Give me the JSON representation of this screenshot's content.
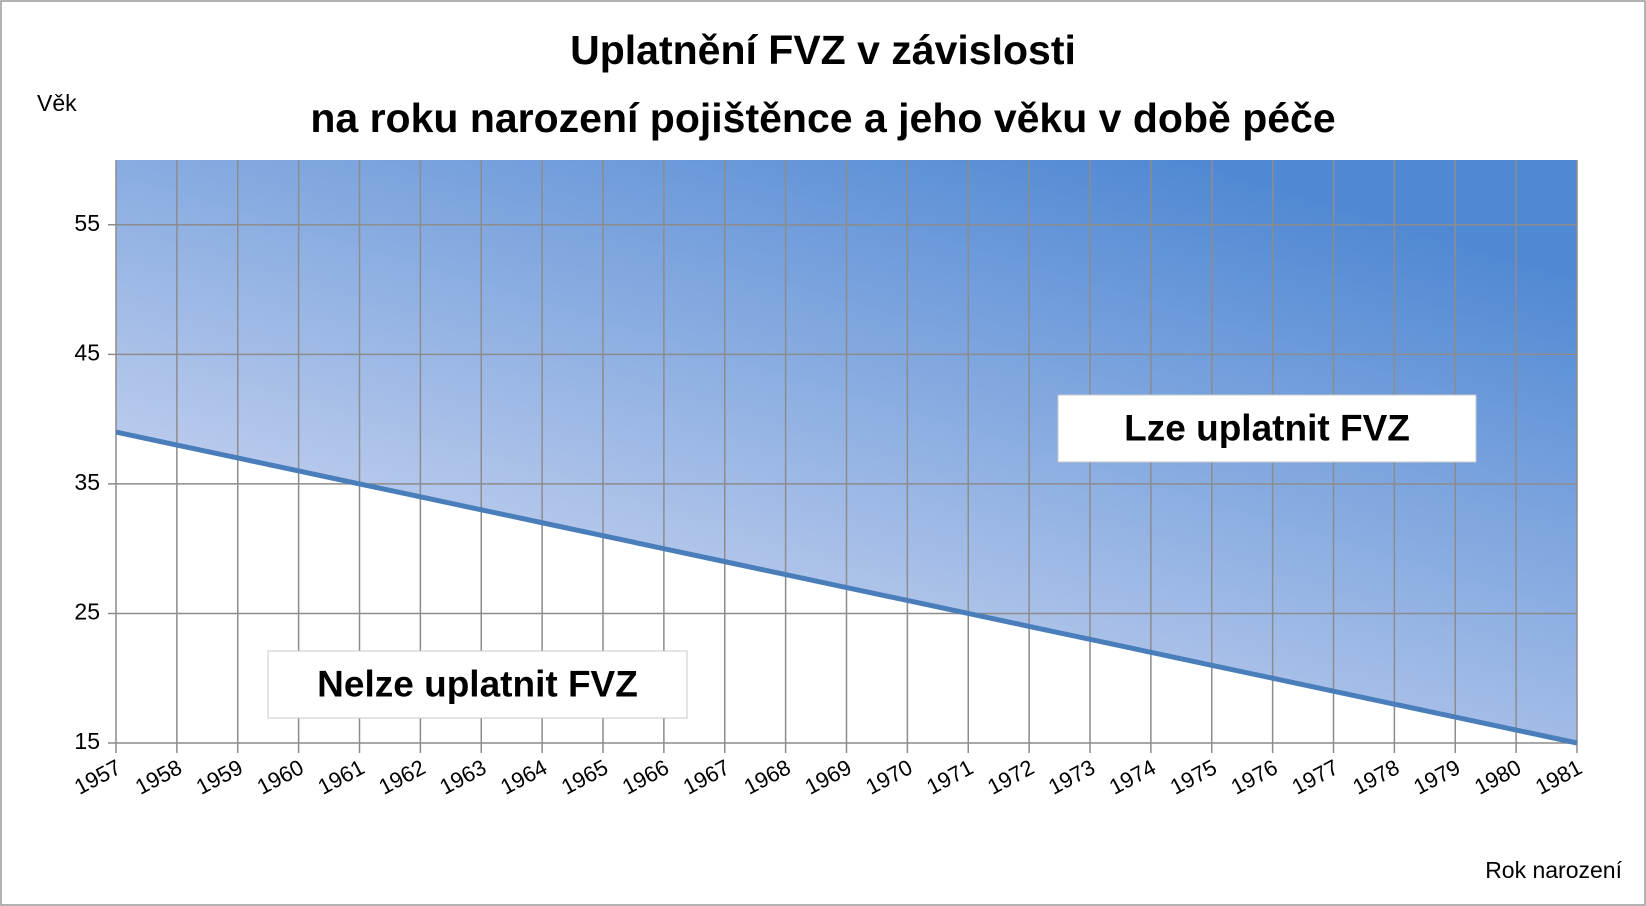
{
  "chart_data": {
    "type": "line",
    "title": [
      "Uplatnění FVZ v závislosti",
      "na roku narození pojištěnce a jeho věku v době péče"
    ],
    "y_label": "Věk",
    "x_label": "Rok narození",
    "annotations": [
      "Lze uplatnit FVZ",
      "Nelze uplatnit FVZ"
    ],
    "x": [
      1957,
      1958,
      1959,
      1960,
      1961,
      1962,
      1963,
      1964,
      1965,
      1966,
      1967,
      1968,
      1969,
      1970,
      1971,
      1972,
      1973,
      1974,
      1975,
      1976,
      1977,
      1978,
      1979,
      1980,
      1981
    ],
    "values": [
      39,
      38,
      37,
      36,
      35,
      34,
      33,
      32,
      31,
      30,
      29,
      28,
      27,
      26,
      25,
      24,
      23,
      22,
      21,
      20,
      19,
      18,
      17,
      16,
      15
    ],
    "color": "#4a7ebb",
    "xlim": [
      1957,
      1981
    ],
    "xticks": [
      1957,
      1958,
      1959,
      1960,
      1961,
      1962,
      1963,
      1964,
      1965,
      1966,
      1967,
      1968,
      1969,
      1970,
      1971,
      1972,
      1973,
      1974,
      1975,
      1976,
      1977,
      1978,
      1979,
      1980,
      1981
    ],
    "ylim": [
      15,
      60
    ],
    "yticks": [
      15,
      25,
      35,
      45,
      55
    ],
    "grid": true
  }
}
